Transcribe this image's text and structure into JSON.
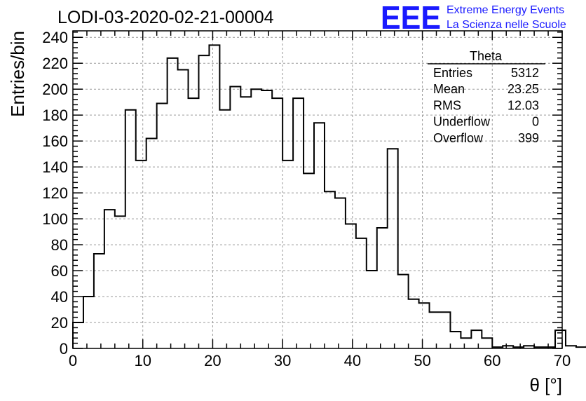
{
  "chart_data": {
    "type": "histogram",
    "title": "LODI-03-2020-02-21-00004",
    "xlabel": "θ [°]",
    "ylabel": "Entries/bin",
    "xlim": [
      0,
      70
    ],
    "ylim": [
      0,
      245
    ],
    "grid": true,
    "x_ticks": [
      0,
      10,
      20,
      30,
      40,
      50,
      60,
      70
    ],
    "y_ticks": [
      0,
      20,
      40,
      60,
      80,
      100,
      120,
      140,
      160,
      180,
      200,
      220,
      240
    ],
    "bin_width": 1.5,
    "bin_start": 0,
    "values": [
      20,
      40,
      73,
      107,
      102,
      184,
      145,
      162,
      189,
      224,
      215,
      193,
      226,
      234,
      184,
      202,
      194,
      200,
      199,
      193,
      145,
      193,
      135,
      174,
      121,
      116,
      96,
      85,
      60,
      93,
      154,
      57,
      38,
      35,
      28,
      28,
      13,
      8,
      14,
      8,
      1,
      2,
      1,
      2,
      1,
      1,
      14,
      2,
      1,
      2
    ],
    "stats_box": {
      "title": "Theta",
      "rows": [
        {
          "label": "Entries",
          "value": "5312"
        },
        {
          "label": "Mean",
          "value": "23.25"
        },
        {
          "label": "RMS",
          "value": "12.03"
        },
        {
          "label": "Underflow",
          "value": "0"
        },
        {
          "label": "Overflow",
          "value": "399"
        }
      ]
    }
  },
  "logo": {
    "mark": "EEE",
    "line1": "Extreme Energy Events",
    "line2": "La Scienza nelle Scuole",
    "color": "#1a1aff"
  }
}
